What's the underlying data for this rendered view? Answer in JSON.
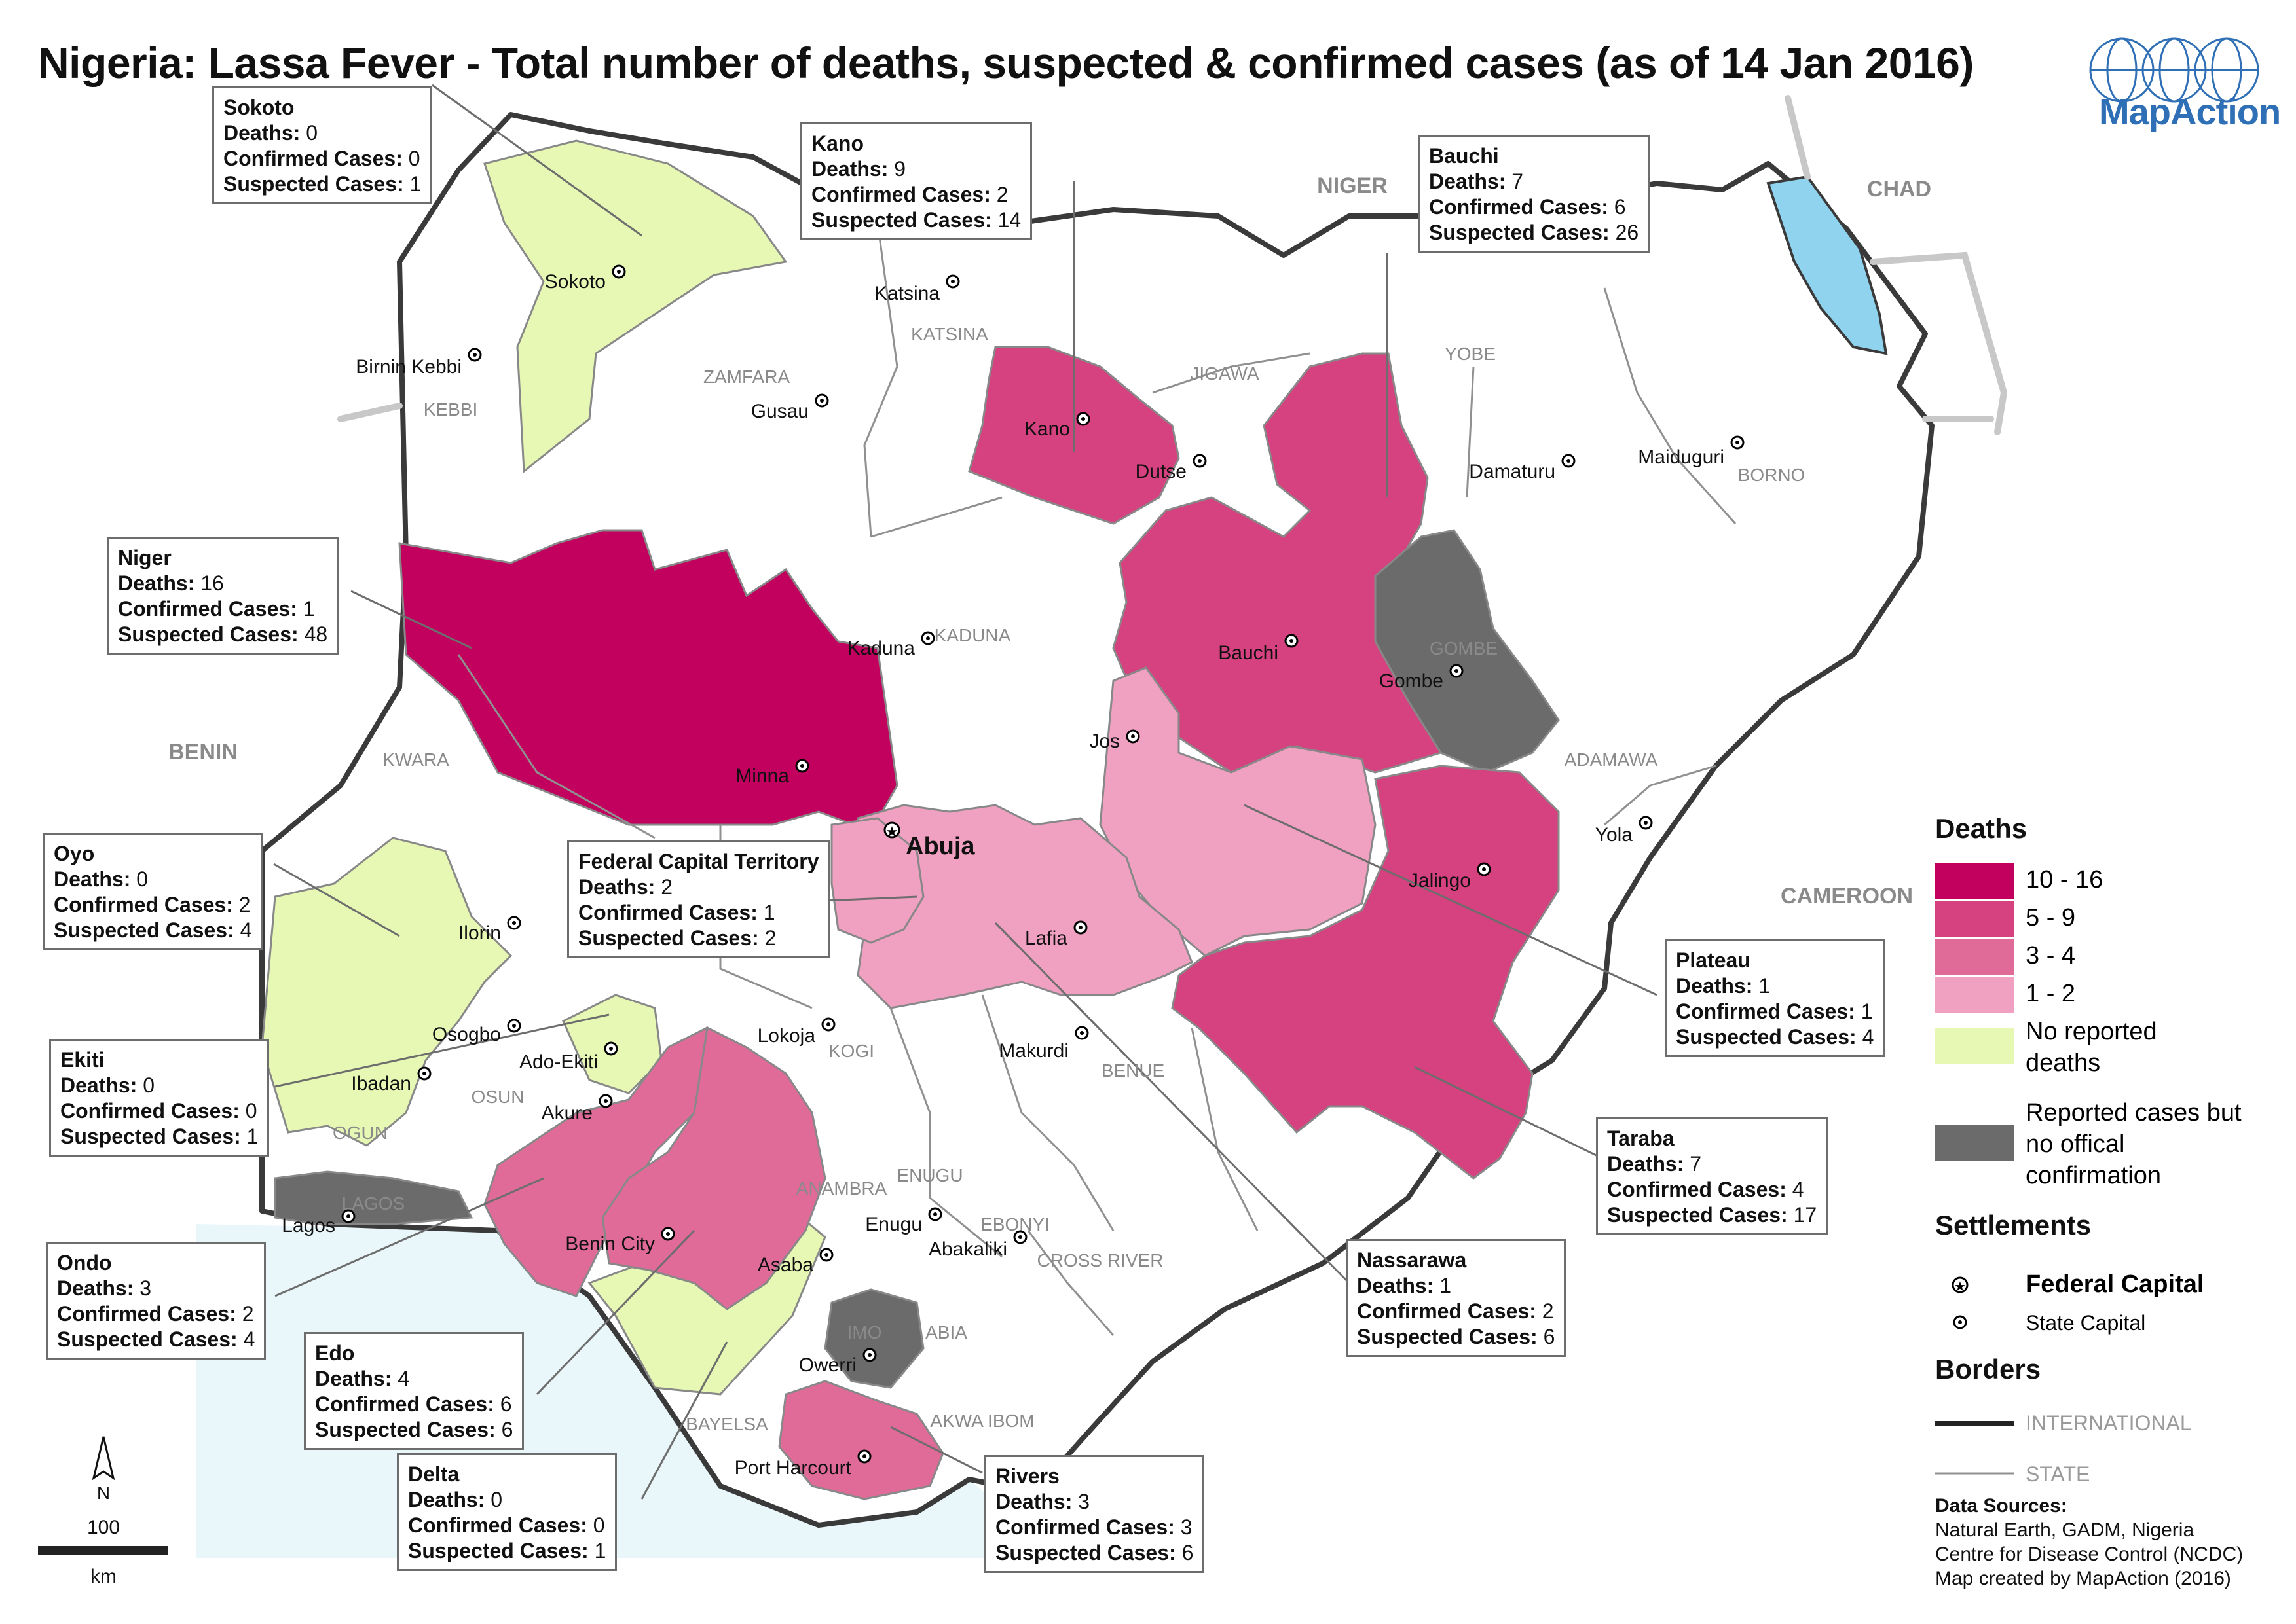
{
  "title": "Nigeria: Lassa Fever - Total number of deaths, suspected & confirmed cases (as of 14 Jan 2016)",
  "logo": {
    "text": "MapAction"
  },
  "countries": [
    "NIGER",
    "CHAD",
    "BENIN",
    "CAMEROON"
  ],
  "state_labels": [
    "KEBBI",
    "ZAMFARA",
    "KATSINA",
    "JIGAWA",
    "YOBE",
    "BORNO",
    "KADUNA",
    "GOMBE",
    "ADAMAWA",
    "KWARA",
    "OSUN",
    "OGUN",
    "LAGOS",
    "KOGI",
    "BENUE",
    "ANAMBRA",
    "ENUGU",
    "EBONYI",
    "CROSS RIVER",
    "IMO",
    "ABIA",
    "BAYELSA",
    "AKWA IBOM"
  ],
  "cities": [
    "Sokoto",
    "Birnin Kebbi",
    "Katsina",
    "Gusau",
    "Kano",
    "Dutse",
    "Damaturu",
    "Maiduguri",
    "Kaduna",
    "Bauchi",
    "Gombe",
    "Minna",
    "Jos",
    "Abuja",
    "Jalingo",
    "Yola",
    "Ilorin",
    "Lafia",
    "Osogbo",
    "Ado-Ekiti",
    "Lokoja",
    "Makurdi",
    "Ibadan",
    "Akure",
    "Lagos",
    "Benin City",
    "Enugu",
    "Abakaliki",
    "Asaba",
    "Owerri",
    "Port Harcourt"
  ],
  "callouts": [
    {
      "name": "Sokoto",
      "deaths": "0",
      "confirmed": "0",
      "suspected": "1"
    },
    {
      "name": "Kano",
      "deaths": "9",
      "confirmed": "2",
      "suspected": "14"
    },
    {
      "name": "Bauchi",
      "deaths": "7",
      "confirmed": "6",
      "suspected": "26"
    },
    {
      "name": "Niger",
      "deaths": "16",
      "confirmed": "1",
      "suspected": "48"
    },
    {
      "name": "Oyo",
      "deaths": "0",
      "confirmed": "2",
      "suspected": "4"
    },
    {
      "name": "Federal Capital Territory",
      "deaths": "2",
      "confirmed": "1",
      "suspected": "2"
    },
    {
      "name": "Ekiti",
      "deaths": "0",
      "confirmed": "0",
      "suspected": "1"
    },
    {
      "name": "Plateau",
      "deaths": "1",
      "confirmed": "1",
      "suspected": "4"
    },
    {
      "name": "Taraba",
      "deaths": "7",
      "confirmed": "4",
      "suspected": "17"
    },
    {
      "name": "Ondo",
      "deaths": "3",
      "confirmed": "2",
      "suspected": "4"
    },
    {
      "name": "Nassarawa",
      "deaths": "1",
      "confirmed": "2",
      "suspected": "6"
    },
    {
      "name": "Edo",
      "deaths": "4",
      "confirmed": "6",
      "suspected": "6"
    },
    {
      "name": "Delta",
      "deaths": "0",
      "confirmed": "0",
      "suspected": "1"
    },
    {
      "name": "Rivers",
      "deaths": "3",
      "confirmed": "3",
      "suspected": "6"
    }
  ],
  "field_labels": {
    "deaths": "Deaths:",
    "confirmed": "Confirmed Cases:",
    "suspected": "Suspected Cases:"
  },
  "legend": {
    "deaths_title": "Deaths",
    "classes": [
      {
        "label": "10 - 16",
        "color": "#c2005e"
      },
      {
        "label": "5 - 9",
        "color": "#d6417f"
      },
      {
        "label": "3 - 4",
        "color": "#e06b98"
      },
      {
        "label": "1 - 2",
        "color": "#f0a0c0"
      },
      {
        "label": "No reported deaths",
        "color": "#e6f8b4"
      },
      {
        "label": "Reported cases but no offical confirmation",
        "color": "#6b6b6b"
      }
    ],
    "settlements_title": "Settlements",
    "federal_capital": "Federal Capital",
    "state_capital": "State Capital",
    "borders_title": "Borders",
    "international": "INTERNATIONAL",
    "state": "STATE"
  },
  "scale": {
    "north": "N",
    "value": "100",
    "unit": "km"
  },
  "sources": {
    "title": "Data Sources:",
    "lines": [
      "Natural Earth, GADM, Nigeria",
      "Centre for Disease Control (NCDC)",
      "Map created by MapAction (2016)"
    ]
  }
}
